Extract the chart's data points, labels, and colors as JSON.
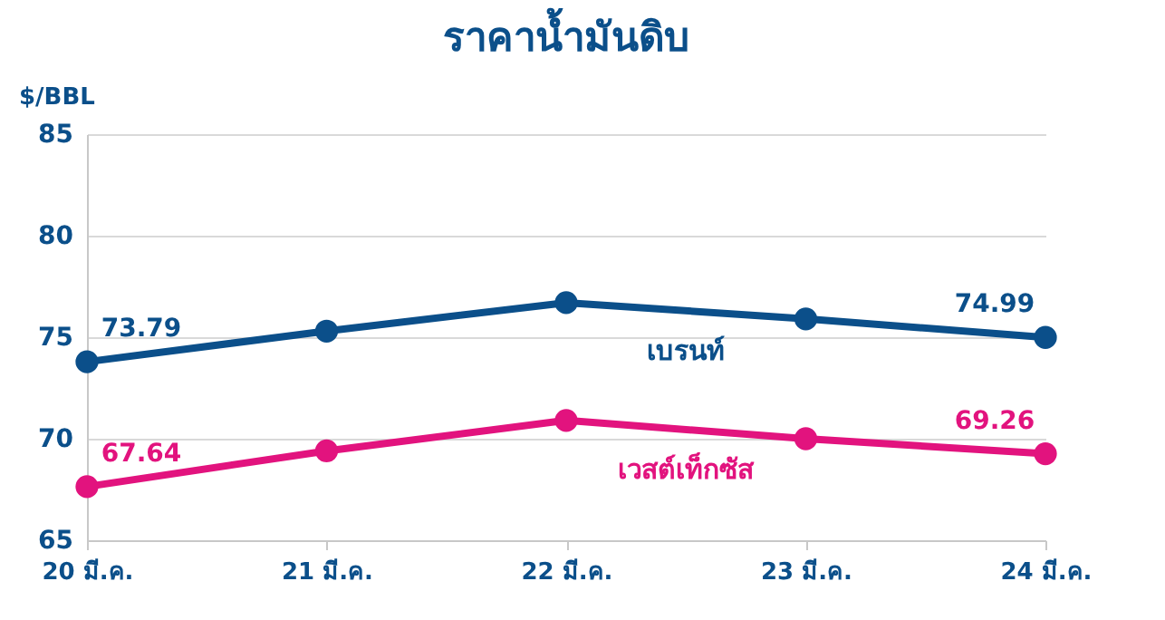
{
  "chart_data": {
    "type": "line",
    "title": "ราคาน้ำมันดิบ",
    "ylabel": "$/BBL",
    "categories": [
      "20 มี.ค.",
      "21 มี.ค.",
      "22 มี.ค.",
      "23 มี.ค.",
      "24 มี.ค."
    ],
    "series": [
      {
        "name": "เบรนท์",
        "color": "#0b4f8a",
        "values": [
          73.79,
          75.3,
          76.7,
          75.9,
          74.99
        ],
        "value_labels": [
          "73.79",
          null,
          null,
          null,
          "74.99"
        ]
      },
      {
        "name": "เวสต์เท็กซัส",
        "color": "#e2137e",
        "values": [
          67.64,
          69.4,
          70.9,
          70.0,
          69.26
        ],
        "value_labels": [
          "67.64",
          null,
          null,
          null,
          "69.26"
        ]
      }
    ],
    "ylim": [
      65,
      85
    ],
    "yticks": [
      65,
      70,
      75,
      80,
      85
    ],
    "grid": "y",
    "marker": "circle",
    "line_style": "solid",
    "legend": false
  }
}
